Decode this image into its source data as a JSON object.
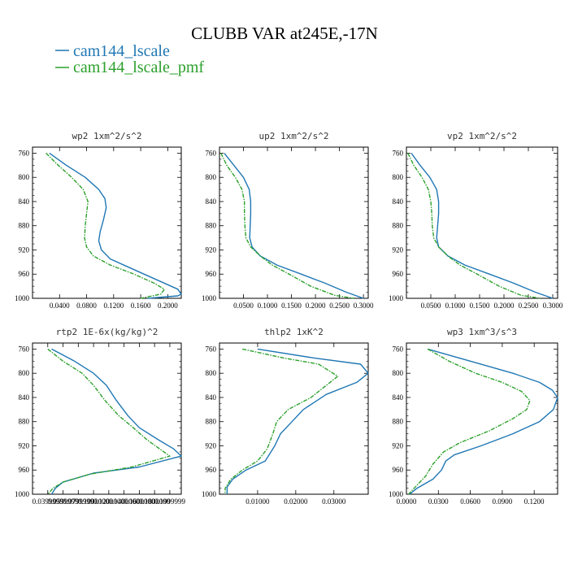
{
  "title": "CLUBB VAR at245E,-17N",
  "colors": {
    "cam144_lscale": "#1f77b4",
    "cam144_lscale_pmf": "#2ca02c"
  },
  "legend": [
    {
      "label": "cam144_lscale",
      "color": "#1f77b4"
    },
    {
      "label": "cam144_lscale_pmf",
      "color": "#2ca02c"
    }
  ],
  "chart_data": [
    {
      "type": "line",
      "title": "wp2  1xm^2/s^2",
      "xlim": [
        0.0,
        0.22
      ],
      "ylim": [
        1000,
        750
      ],
      "xticks": [
        0.04,
        0.08,
        0.12,
        0.16,
        0.2
      ],
      "xticklabels": [
        "0.0400",
        "0.0800",
        "0.1200",
        "0.1600",
        "0.2000"
      ],
      "yticks": [
        760,
        800,
        840,
        880,
        920,
        960,
        1000
      ],
      "series": [
        {
          "name": "cam144_lscale",
          "points": [
            [
              0.025,
              760
            ],
            [
              0.05,
              780
            ],
            [
              0.078,
              800
            ],
            [
              0.098,
              820
            ],
            [
              0.107,
              835
            ],
            [
              0.109,
              850
            ],
            [
              0.105,
              870
            ],
            [
              0.1,
              890
            ],
            [
              0.098,
              905
            ],
            [
              0.102,
              920
            ],
            [
              0.115,
              935
            ],
            [
              0.145,
              950
            ],
            [
              0.185,
              970
            ],
            [
              0.215,
              985
            ],
            [
              0.22,
              993
            ],
            [
              0.215,
              996
            ],
            [
              0.17,
              1000
            ]
          ]
        },
        {
          "name": "cam144_lscale_pmf",
          "points": [
            [
              0.02,
              760
            ],
            [
              0.038,
              780
            ],
            [
              0.058,
              800
            ],
            [
              0.075,
              820
            ],
            [
              0.082,
              840
            ],
            [
              0.08,
              860
            ],
            [
              0.078,
              880
            ],
            [
              0.077,
              900
            ],
            [
              0.08,
              915
            ],
            [
              0.09,
              930
            ],
            [
              0.115,
              945
            ],
            [
              0.15,
              960
            ],
            [
              0.18,
              975
            ],
            [
              0.195,
              985
            ],
            [
              0.19,
              993
            ],
            [
              0.16,
              1000
            ]
          ]
        }
      ]
    },
    {
      "type": "line",
      "title": "up2  1xm^2/s^2",
      "xlim": [
        0.0,
        0.31
      ],
      "ylim": [
        1000,
        750
      ],
      "xticks": [
        0.05,
        0.1,
        0.15,
        0.2,
        0.25,
        0.3
      ],
      "xticklabels": [
        "0.0500",
        "0.1000",
        "0.1500",
        "0.2000",
        "0.2500",
        "0.3000"
      ],
      "yticks": [
        760,
        800,
        840,
        880,
        920,
        960,
        1000
      ],
      "series": [
        {
          "name": "cam144_lscale",
          "points": [
            [
              0.01,
              760
            ],
            [
              0.03,
              780
            ],
            [
              0.05,
              800
            ],
            [
              0.062,
              820
            ],
            [
              0.065,
              840
            ],
            [
              0.065,
              860
            ],
            [
              0.064,
              880
            ],
            [
              0.063,
              900
            ],
            [
              0.068,
              915
            ],
            [
              0.085,
              930
            ],
            [
              0.12,
              945
            ],
            [
              0.17,
              960
            ],
            [
              0.22,
              975
            ],
            [
              0.265,
              990
            ],
            [
              0.3,
              1000
            ]
          ]
        },
        {
          "name": "cam144_lscale_pmf",
          "points": [
            [
              0.003,
              760
            ],
            [
              0.015,
              780
            ],
            [
              0.033,
              800
            ],
            [
              0.047,
              820
            ],
            [
              0.052,
              840
            ],
            [
              0.052,
              860
            ],
            [
              0.053,
              880
            ],
            [
              0.055,
              900
            ],
            [
              0.065,
              915
            ],
            [
              0.085,
              930
            ],
            [
              0.11,
              945
            ],
            [
              0.145,
              960
            ],
            [
              0.19,
              980
            ],
            [
              0.24,
              995
            ],
            [
              0.28,
              1000
            ]
          ]
        }
      ]
    },
    {
      "type": "line",
      "title": "vp2  1xm^2/s^2",
      "xlim": [
        0.0,
        0.31
      ],
      "ylim": [
        1000,
        750
      ],
      "xticks": [
        0.05,
        0.1,
        0.15,
        0.2,
        0.25,
        0.3
      ],
      "xticklabels": [
        "0.0500",
        "0.1000",
        "0.1500",
        "0.2000",
        "0.2500",
        "0.3000"
      ],
      "yticks": [
        760,
        800,
        840,
        880,
        920,
        960,
        1000
      ],
      "series": [
        {
          "name": "cam144_lscale",
          "points": [
            [
              0.01,
              760
            ],
            [
              0.028,
              780
            ],
            [
              0.048,
              800
            ],
            [
              0.062,
              820
            ],
            [
              0.066,
              840
            ],
            [
              0.066,
              860
            ],
            [
              0.064,
              880
            ],
            [
              0.062,
              900
            ],
            [
              0.066,
              915
            ],
            [
              0.085,
              930
            ],
            [
              0.12,
              945
            ],
            [
              0.17,
              960
            ],
            [
              0.22,
              975
            ],
            [
              0.265,
              990
            ],
            [
              0.3,
              1000
            ]
          ]
        },
        {
          "name": "cam144_lscale_pmf",
          "points": [
            [
              0.003,
              760
            ],
            [
              0.015,
              780
            ],
            [
              0.032,
              800
            ],
            [
              0.045,
              820
            ],
            [
              0.05,
              840
            ],
            [
              0.052,
              860
            ],
            [
              0.053,
              880
            ],
            [
              0.056,
              900
            ],
            [
              0.066,
              915
            ],
            [
              0.085,
              930
            ],
            [
              0.11,
              945
            ],
            [
              0.145,
              960
            ],
            [
              0.19,
              980
            ],
            [
              0.235,
              995
            ],
            [
              0.275,
              1000
            ]
          ]
        }
      ]
    },
    {
      "type": "line",
      "title": "rtp2  1E-6x(kg/kg)^2",
      "xlim": [
        0.02,
        0.215
      ],
      "ylim": [
        1000,
        750
      ],
      "xticks": [
        0.04,
        0.06,
        0.08,
        0.1,
        0.12,
        0.14,
        0.16,
        0.18,
        0.2
      ],
      "xticklabels": [
        "0.0399999",
        "0.0599999",
        "0.0799999",
        "0.1000000",
        "0.1200000",
        "0.1400000",
        "0.1600000",
        "0.1800000",
        "0.1999999"
      ],
      "yticks": [
        760,
        800,
        840,
        880,
        920,
        960,
        1000
      ],
      "series": [
        {
          "name": "cam144_lscale",
          "points": [
            [
              0.045,
              760
            ],
            [
              0.075,
              780
            ],
            [
              0.1,
              800
            ],
            [
              0.117,
              820
            ],
            [
              0.13,
              845
            ],
            [
              0.145,
              870
            ],
            [
              0.16,
              890
            ],
            [
              0.185,
              910
            ],
            [
              0.205,
              925
            ],
            [
              0.215,
              937
            ],
            [
              0.16,
              955
            ],
            [
              0.1,
              965
            ],
            [
              0.06,
              980
            ],
            [
              0.05,
              990
            ],
            [
              0.045,
              1000
            ]
          ]
        },
        {
          "name": "cam144_lscale_pmf",
          "points": [
            [
              0.04,
              760
            ],
            [
              0.06,
              780
            ],
            [
              0.085,
              800
            ],
            [
              0.1,
              820
            ],
            [
              0.115,
              845
            ],
            [
              0.133,
              870
            ],
            [
              0.152,
              890
            ],
            [
              0.17,
              910
            ],
            [
              0.19,
              928
            ],
            [
              0.2,
              937
            ],
            [
              0.15,
              955
            ],
            [
              0.095,
              967
            ],
            [
              0.06,
              980
            ],
            [
              0.047,
              990
            ],
            [
              0.04,
              1000
            ]
          ]
        }
      ]
    },
    {
      "type": "line",
      "title": "thlp2  1xK^2",
      "xlim": [
        0.0,
        0.039
      ],
      "ylim": [
        1000,
        750
      ],
      "xticks": [
        0.01,
        0.02,
        0.03
      ],
      "xticklabels": [
        "0.01000",
        "0.02000",
        "0.03000"
      ],
      "yticks": [
        760,
        800,
        840,
        880,
        920,
        960,
        1000
      ],
      "series": [
        {
          "name": "cam144_lscale",
          "points": [
            [
              0.01,
              760
            ],
            [
              0.025,
              775
            ],
            [
              0.037,
              785
            ],
            [
              0.039,
              800
            ],
            [
              0.036,
              815
            ],
            [
              0.028,
              835
            ],
            [
              0.022,
              860
            ],
            [
              0.019,
              880
            ],
            [
              0.016,
              900
            ],
            [
              0.0145,
              920
            ],
            [
              0.012,
              945
            ],
            [
              0.007,
              960
            ],
            [
              0.0035,
              975
            ],
            [
              0.002,
              988
            ],
            [
              0.002,
              1000
            ]
          ]
        },
        {
          "name": "cam144_lscale_pmf",
          "points": [
            [
              0.006,
              760
            ],
            [
              0.017,
              775
            ],
            [
              0.026,
              785
            ],
            [
              0.031,
              805
            ],
            [
              0.028,
              820
            ],
            [
              0.024,
              840
            ],
            [
              0.018,
              860
            ],
            [
              0.015,
              880
            ],
            [
              0.014,
              900
            ],
            [
              0.0125,
              925
            ],
            [
              0.01,
              945
            ],
            [
              0.006,
              960
            ],
            [
              0.003,
              975
            ],
            [
              0.0015,
              990
            ],
            [
              0.0015,
              1000
            ]
          ]
        }
      ]
    },
    {
      "type": "line",
      "title": "wp3  1xm^3/s^3",
      "xlim": [
        0.0,
        0.142
      ],
      "ylim": [
        1000,
        750
      ],
      "xticks": [
        0.0,
        0.03,
        0.06,
        0.09,
        0.12
      ],
      "xticklabels": [
        "0.0000",
        "0.0300",
        "0.0600",
        "0.0900",
        "0.1200"
      ],
      "yticks": [
        760,
        800,
        840,
        880,
        920,
        960,
        1000
      ],
      "series": [
        {
          "name": "cam144_lscale",
          "points": [
            [
              0.02,
              760
            ],
            [
              0.06,
              780
            ],
            [
              0.1,
              800
            ],
            [
              0.125,
              815
            ],
            [
              0.137,
              828
            ],
            [
              0.142,
              840
            ],
            [
              0.138,
              860
            ],
            [
              0.125,
              880
            ],
            [
              0.1,
              900
            ],
            [
              0.07,
              920
            ],
            [
              0.045,
              935
            ],
            [
              0.037,
              945
            ],
            [
              0.033,
              960
            ],
            [
              0.025,
              975
            ],
            [
              0.01,
              990
            ],
            [
              0.003,
              1000
            ]
          ]
        },
        {
          "name": "cam144_lscale_pmf",
          "points": [
            [
              0.02,
              760
            ],
            [
              0.04,
              780
            ],
            [
              0.065,
              800
            ],
            [
              0.09,
              815
            ],
            [
              0.108,
              830
            ],
            [
              0.116,
              845
            ],
            [
              0.113,
              860
            ],
            [
              0.1,
              875
            ],
            [
              0.078,
              895
            ],
            [
              0.05,
              915
            ],
            [
              0.035,
              930
            ],
            [
              0.025,
              950
            ],
            [
              0.018,
              970
            ],
            [
              0.01,
              985
            ],
            [
              0.002,
              1000
            ]
          ]
        }
      ]
    }
  ]
}
